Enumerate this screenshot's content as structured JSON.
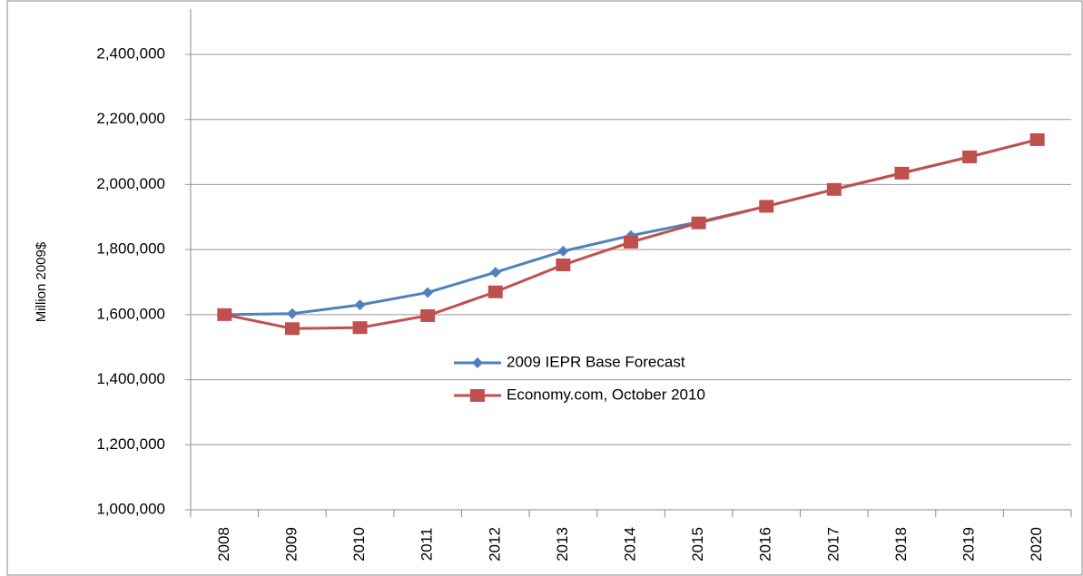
{
  "chart_data": {
    "type": "line",
    "y_label": "Million 2009$",
    "categories": [
      "2008",
      "2009",
      "2010",
      "2011",
      "2012",
      "2013",
      "2014",
      "2015",
      "2016",
      "2017",
      "2018",
      "2019",
      "2020"
    ],
    "series": [
      {
        "name": "2009 IEPR Base Forecast",
        "color": "#4f81bd",
        "marker": "diamond",
        "values": [
          1600000,
          1603000,
          1630000,
          1668000,
          1730000,
          1795000,
          1843000,
          1885000,
          1933000,
          1985000,
          2035000,
          2085000,
          2138000
        ]
      },
      {
        "name": "Economy.com, October 2010",
        "color": "#c0504d",
        "marker": "square",
        "values": [
          1600000,
          1557000,
          1560000,
          1597000,
          1670000,
          1753000,
          1823000,
          1882000,
          1933000,
          1985000,
          2035000,
          2085000,
          2138000
        ]
      }
    ],
    "ylim": [
      1000000,
      2400000
    ],
    "yticks": [
      {
        "value": 1000000,
        "label": "1,000,000"
      },
      {
        "value": 1200000,
        "label": "1,200,000"
      },
      {
        "value": 1400000,
        "label": "1,400,000"
      },
      {
        "value": 1600000,
        "label": "1,600,000"
      },
      {
        "value": 1800000,
        "label": "1,800,000"
      },
      {
        "value": 2000000,
        "label": "2,000,000"
      },
      {
        "value": 2200000,
        "label": "2,200,000"
      },
      {
        "value": 2400000,
        "label": "2,400,000"
      }
    ],
    "grid": true
  }
}
